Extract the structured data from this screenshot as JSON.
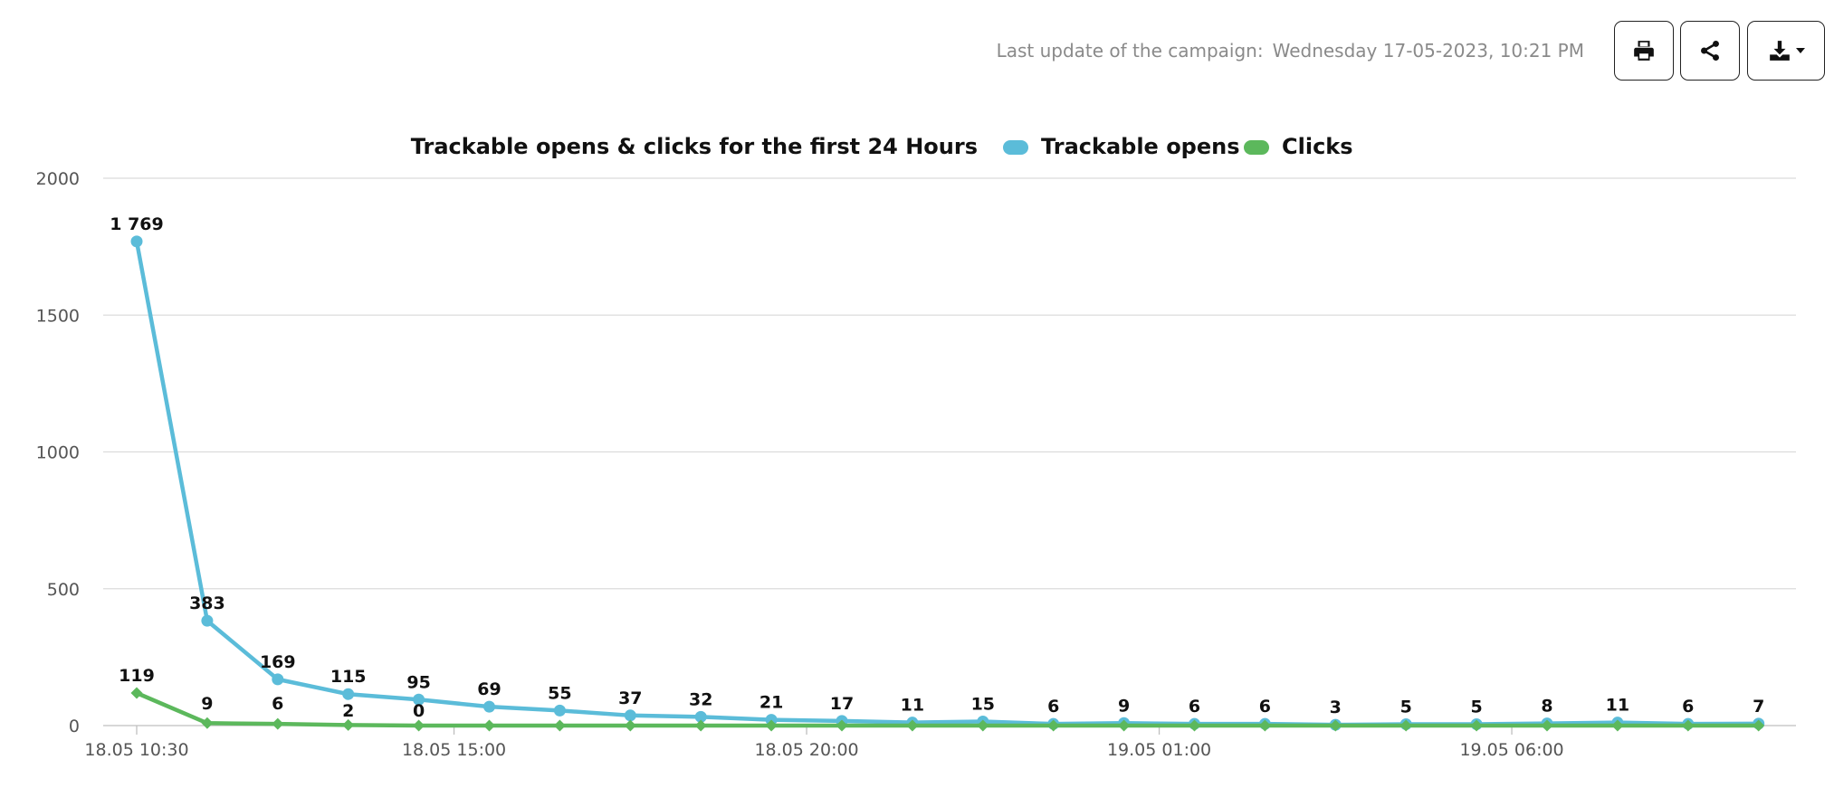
{
  "header": {
    "last_update_label": "Last update of the campaign:",
    "last_update_value": "Wednesday 17-05-2023, 10:21 PM",
    "buttons": [
      {
        "name": "print",
        "icon": "print-icon"
      },
      {
        "name": "share",
        "icon": "share-icon"
      },
      {
        "name": "download",
        "icon": "download-icon"
      }
    ]
  },
  "chart_data": {
    "type": "line",
    "title": "Trackable opens & clicks for the first 24 Hours",
    "xlabel": "",
    "ylabel": "",
    "ylim": [
      0,
      2000
    ],
    "yticks": [
      0,
      500,
      1000,
      1500,
      2000
    ],
    "x": [
      "18.05 10:30",
      "18.05 11:30",
      "18.05 12:30",
      "18.05 13:30",
      "18.05 14:30",
      "18.05 15:30",
      "18.05 16:30",
      "18.05 17:30",
      "18.05 18:30",
      "18.05 19:30",
      "18.05 20:30",
      "18.05 21:30",
      "18.05 22:30",
      "18.05 23:30",
      "19.05 00:30",
      "19.05 01:30",
      "19.05 02:30",
      "19.05 03:30",
      "19.05 04:30",
      "19.05 05:30",
      "19.05 06:30",
      "19.05 07:30",
      "19.05 08:30",
      "19.05 09:30"
    ],
    "xticks": [
      {
        "label": "18.05 10:30",
        "index": 0
      },
      {
        "label": "18.05 15:00",
        "index": 4.5
      },
      {
        "label": "18.05 20:00",
        "index": 9.5
      },
      {
        "label": "19.05 01:00",
        "index": 14.5
      },
      {
        "label": "19.05 06:00",
        "index": 19.5
      }
    ],
    "legend_position": "top",
    "grid": true,
    "series": [
      {
        "name": "Trackable opens",
        "color": "#5bbcd9",
        "marker": "circle",
        "values": [
          1769,
          383,
          169,
          115,
          95,
          69,
          55,
          37,
          32,
          21,
          17,
          11,
          15,
          6,
          9,
          6,
          6,
          3,
          5,
          5,
          8,
          11,
          6,
          7
        ],
        "labels": [
          "1 769",
          "383",
          "169",
          "115",
          "95",
          "69",
          "55",
          "37",
          "32",
          "21",
          "17",
          "11",
          "15",
          "6",
          "9",
          "6",
          "6",
          "3",
          "5",
          "5",
          "8",
          "11",
          "6",
          "7"
        ]
      },
      {
        "name": "Clicks",
        "color": "#5cb85c",
        "marker": "diamond",
        "values": [
          119,
          9,
          6,
          2,
          0,
          0,
          0,
          0,
          0,
          0,
          0,
          0,
          0,
          0,
          0,
          0,
          0,
          0,
          0,
          0,
          0,
          0,
          0,
          0
        ],
        "labels": [
          "119",
          "9",
          "6",
          "2",
          "0"
        ]
      }
    ]
  }
}
